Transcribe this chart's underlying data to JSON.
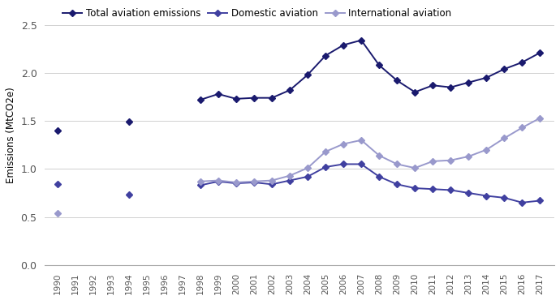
{
  "ylabel": "Emissions (MtCO2e)",
  "ylim": [
    0,
    2.7
  ],
  "yticks": [
    0,
    0.5,
    1.0,
    1.5,
    2.0,
    2.5
  ],
  "segments_total": [
    {
      "years": [
        1990
      ],
      "values": [
        1.4
      ]
    },
    {
      "years": [
        1994
      ],
      "values": [
        1.49
      ]
    },
    {
      "years": [
        1998,
        1999,
        2000,
        2001,
        2002,
        2003,
        2004,
        2005,
        2006,
        2007,
        2008,
        2009,
        2010,
        2011,
        2012,
        2013,
        2014,
        2015,
        2016,
        2017
      ],
      "values": [
        1.72,
        1.78,
        1.73,
        1.74,
        1.74,
        1.82,
        1.98,
        2.18,
        2.29,
        2.34,
        2.08,
        1.92,
        1.8,
        1.87,
        1.85,
        1.9,
        1.95,
        2.04,
        2.11,
        2.21
      ]
    }
  ],
  "segments_domestic": [
    {
      "years": [
        1990
      ],
      "values": [
        0.84
      ]
    },
    {
      "years": [
        1994
      ],
      "values": [
        0.73
      ]
    },
    {
      "years": [
        1998,
        1999,
        2000,
        2001,
        2002,
        2003,
        2004,
        2005,
        2006,
        2007,
        2008,
        2009,
        2010,
        2011,
        2012,
        2013,
        2014,
        2015,
        2016,
        2017
      ],
      "values": [
        0.83,
        0.87,
        0.85,
        0.86,
        0.84,
        0.88,
        0.92,
        1.02,
        1.05,
        1.05,
        0.92,
        0.84,
        0.8,
        0.79,
        0.78,
        0.75,
        0.72,
        0.7,
        0.65,
        0.67
      ]
    }
  ],
  "segments_intl": [
    {
      "years": [
        1990
      ],
      "values": [
        0.54
      ]
    },
    {
      "years": [
        1998,
        1999,
        2000,
        2001,
        2002,
        2003,
        2004,
        2005,
        2006,
        2007,
        2008,
        2009,
        2010,
        2011,
        2012,
        2013,
        2014,
        2015,
        2016,
        2017
      ],
      "values": [
        0.87,
        0.88,
        0.86,
        0.87,
        0.88,
        0.93,
        1.01,
        1.18,
        1.26,
        1.3,
        1.14,
        1.05,
        1.01,
        1.08,
        1.09,
        1.13,
        1.2,
        1.32,
        1.43,
        1.53
      ]
    }
  ],
  "total_color": "#1a1a6e",
  "domestic_color": "#4040a0",
  "intl_color": "#9999cc",
  "xtick_labels": [
    "1990",
    "1991",
    "1992",
    "1993",
    "1994",
    "1995",
    "1996",
    "1997",
    "1998",
    "1999",
    "2000",
    "2001",
    "2002",
    "2003",
    "2004",
    "2005",
    "2006",
    "2007",
    "2008",
    "2009",
    "2010",
    "2011",
    "2012",
    "2013",
    "2014",
    "2015",
    "2016",
    "2017"
  ],
  "xtick_positions": [
    1990,
    1991,
    1992,
    1993,
    1994,
    1995,
    1996,
    1997,
    1998,
    1999,
    2000,
    2001,
    2002,
    2003,
    2004,
    2005,
    2006,
    2007,
    2008,
    2009,
    2010,
    2011,
    2012,
    2013,
    2014,
    2015,
    2016,
    2017
  ]
}
